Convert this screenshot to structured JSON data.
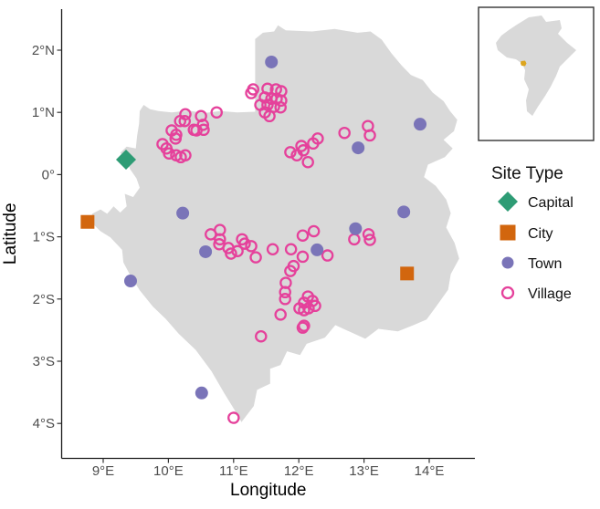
{
  "figure": {
    "type": "map-scatter",
    "region": "Gabon"
  },
  "axes": {
    "x": {
      "label": "Longitude",
      "ticks": [
        {
          "value": 9,
          "label": "9°E"
        },
        {
          "value": 10,
          "label": "10°E"
        },
        {
          "value": 11,
          "label": "11°E"
        },
        {
          "value": 12,
          "label": "12°E"
        },
        {
          "value": 13,
          "label": "13°E"
        },
        {
          "value": 14,
          "label": "14°E"
        }
      ]
    },
    "y": {
      "label": "Latitude",
      "ticks": [
        {
          "value": 2,
          "label": "2°N"
        },
        {
          "value": 1,
          "label": "1°N"
        },
        {
          "value": 0,
          "label": "0°"
        },
        {
          "value": -1,
          "label": "1°S"
        },
        {
          "value": -2,
          "label": "2°S"
        },
        {
          "value": -3,
          "label": "3°S"
        },
        {
          "value": -4,
          "label": "4°S"
        }
      ]
    }
  },
  "legend": {
    "title": "Site Type",
    "items": [
      {
        "label": "Capital",
        "shape": "diamond",
        "color": "#2e9c75"
      },
      {
        "label": "City",
        "shape": "square",
        "color": "#d2660e"
      },
      {
        "label": "Town",
        "shape": "circle",
        "color": "#7a74b8"
      },
      {
        "label": "Village",
        "shape": "open-circle",
        "color": "#e5419b"
      }
    ]
  },
  "map": {
    "land_color": "#d9d9d9"
  },
  "inset": {
    "name": "africa-locator",
    "continent_color": "#d9d9d9",
    "highlight_color": "#dda51e",
    "border_color": "#333333"
  },
  "chart_data": {
    "type": "scatter",
    "projection": "equirectangular",
    "title": "",
    "xlabel": "Longitude",
    "ylabel": "Latitude",
    "xlim": [
      8.35,
      14.7
    ],
    "ylim": [
      -4.55,
      2.65
    ],
    "grid": false,
    "legend_position": "right",
    "series": [
      {
        "name": "Capital",
        "shape": "diamond",
        "color": "#2e9c75",
        "points": [
          [
            9.35,
            0.24
          ]
        ]
      },
      {
        "name": "City",
        "shape": "square",
        "color": "#d2660e",
        "points": [
          [
            8.76,
            -0.76
          ],
          [
            13.66,
            -1.59
          ]
        ]
      },
      {
        "name": "Town",
        "shape": "circle",
        "color": "#7a74b8",
        "points": [
          [
            11.58,
            1.81
          ],
          [
            13.86,
            0.81
          ],
          [
            12.91,
            0.43
          ],
          [
            10.22,
            -0.62
          ],
          [
            10.57,
            -1.24
          ],
          [
            13.61,
            -0.6
          ],
          [
            12.87,
            -0.87
          ],
          [
            12.28,
            -1.21
          ],
          [
            9.42,
            -1.71
          ],
          [
            10.51,
            -3.51
          ]
        ]
      },
      {
        "name": "Village",
        "shape": "open-circle",
        "color": "#e5419b",
        "points": [
          [
            10.74,
            1.0
          ],
          [
            10.26,
            0.97
          ],
          [
            10.25,
            0.86
          ],
          [
            10.5,
            0.94
          ],
          [
            10.53,
            0.8
          ],
          [
            10.54,
            0.72
          ],
          [
            10.18,
            0.86
          ],
          [
            10.39,
            0.72
          ],
          [
            10.43,
            0.71
          ],
          [
            10.05,
            0.71
          ],
          [
            10.12,
            0.64
          ],
          [
            10.11,
            0.58
          ],
          [
            9.91,
            0.49
          ],
          [
            9.97,
            0.42
          ],
          [
            10.01,
            0.34
          ],
          [
            10.12,
            0.31
          ],
          [
            10.19,
            0.28
          ],
          [
            10.26,
            0.31
          ],
          [
            11.27,
            1.31
          ],
          [
            11.3,
            1.37
          ],
          [
            11.52,
            1.38
          ],
          [
            11.65,
            1.37
          ],
          [
            11.73,
            1.34
          ],
          [
            11.48,
            1.24
          ],
          [
            11.58,
            1.22
          ],
          [
            11.66,
            1.22
          ],
          [
            11.73,
            1.19
          ],
          [
            11.41,
            1.12
          ],
          [
            11.52,
            1.12
          ],
          [
            11.62,
            1.09
          ],
          [
            11.72,
            1.08
          ],
          [
            11.48,
            1.0
          ],
          [
            11.55,
            0.94
          ],
          [
            11.87,
            0.36
          ],
          [
            12.04,
            0.46
          ],
          [
            12.07,
            0.39
          ],
          [
            12.22,
            0.5
          ],
          [
            12.29,
            0.58
          ],
          [
            12.14,
            0.2
          ],
          [
            11.97,
            0.31
          ],
          [
            13.06,
            0.78
          ],
          [
            13.09,
            0.63
          ],
          [
            12.7,
            0.67
          ],
          [
            10.65,
            -0.96
          ],
          [
            10.79,
            -0.89
          ],
          [
            10.79,
            -1.04
          ],
          [
            10.78,
            -1.12
          ],
          [
            10.92,
            -1.18
          ],
          [
            10.96,
            -1.27
          ],
          [
            11.06,
            -1.23
          ],
          [
            11.13,
            -1.04
          ],
          [
            11.17,
            -1.11
          ],
          [
            11.27,
            -1.15
          ],
          [
            11.34,
            -1.33
          ],
          [
            12.06,
            -0.98
          ],
          [
            12.23,
            -0.91
          ],
          [
            11.6,
            -1.2
          ],
          [
            11.88,
            -1.2
          ],
          [
            12.06,
            -1.32
          ],
          [
            12.44,
            -1.3
          ],
          [
            11.92,
            -1.47
          ],
          [
            13.07,
            -0.96
          ],
          [
            13.09,
            -1.05
          ],
          [
            12.85,
            -1.04
          ],
          [
            11.87,
            -1.55
          ],
          [
            11.8,
            -1.74
          ],
          [
            11.79,
            -1.89
          ],
          [
            11.79,
            -2.0
          ],
          [
            12.14,
            -1.96
          ],
          [
            12.21,
            -2.03
          ],
          [
            12.08,
            -2.06
          ],
          [
            12.25,
            -2.11
          ],
          [
            12.01,
            -2.15
          ],
          [
            12.08,
            -2.18
          ],
          [
            12.15,
            -2.15
          ],
          [
            11.72,
            -2.25
          ],
          [
            12.08,
            -2.43
          ],
          [
            11.42,
            -2.6
          ],
          [
            12.06,
            -2.46
          ],
          [
            11.0,
            -3.91
          ]
        ]
      }
    ]
  }
}
